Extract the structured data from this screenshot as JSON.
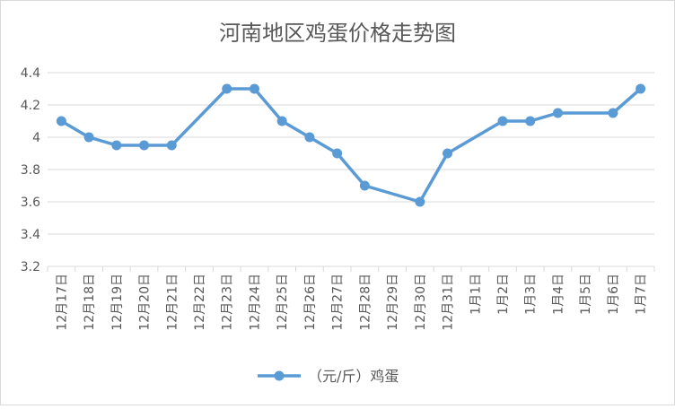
{
  "chart_data": {
    "type": "line",
    "title": "河南地区鸡蛋价格走势图",
    "xlabel": "",
    "ylabel": "",
    "ylim": [
      3.2,
      4.4
    ],
    "yticks": [
      "3.2",
      "3.4",
      "3.6",
      "3.8",
      "4",
      "4.2",
      "4.4"
    ],
    "grid": true,
    "legend_position": "bottom",
    "categories": [
      "12月17日",
      "12月18日",
      "12月19日",
      "12月20日",
      "12月21日",
      "12月22日",
      "12月23日",
      "12月24日",
      "12月25日",
      "12月26日",
      "12月27日",
      "12月28日",
      "12月29日",
      "12月30日",
      "12月31日",
      "1月1日",
      "1月2日",
      "1月3日",
      "1月4日",
      "1月5日",
      "1月6日",
      "1月7日"
    ],
    "series": [
      {
        "name": "（元/斤）鸡蛋",
        "color": "#5b9bd5",
        "values": [
          4.1,
          4.0,
          3.95,
          3.95,
          3.95,
          null,
          4.3,
          4.3,
          4.1,
          4.0,
          3.9,
          3.7,
          null,
          3.6,
          3.9,
          null,
          4.1,
          4.1,
          4.15,
          null,
          4.15,
          4.3
        ]
      }
    ]
  }
}
